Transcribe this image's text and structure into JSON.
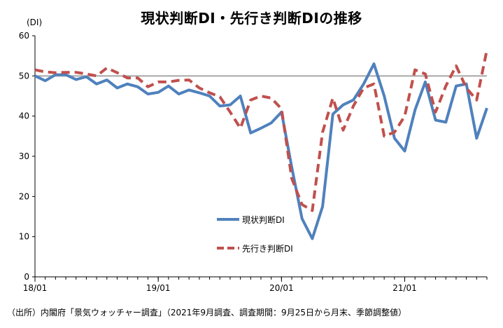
{
  "chart_data": {
    "type": "line",
    "title": "現状判断DI・先行き判断DIの推移",
    "ylabel": "(DI)",
    "xlabel": "",
    "ylim": [
      0,
      60
    ],
    "yticks": [
      0,
      10,
      20,
      30,
      40,
      50,
      60
    ],
    "x_start": "2018-01",
    "x_end": "2021-09",
    "x_tick_labels": [
      {
        "label": "18/01",
        "x": "2018-01"
      },
      {
        "label": "19/01",
        "x": "2019-01"
      },
      {
        "label": "20/01",
        "x": "2020-01"
      },
      {
        "label": "21/01",
        "x": "2021-01"
      }
    ],
    "reference_line": {
      "y": 50,
      "color": "#a6a6a6"
    },
    "grid": false,
    "legend_position": "center",
    "x": [
      "2018-01",
      "2018-02",
      "2018-03",
      "2018-04",
      "2018-05",
      "2018-06",
      "2018-07",
      "2018-08",
      "2018-09",
      "2018-10",
      "2018-11",
      "2018-12",
      "2019-01",
      "2019-02",
      "2019-03",
      "2019-04",
      "2019-05",
      "2019-06",
      "2019-07",
      "2019-08",
      "2019-09",
      "2019-10",
      "2019-11",
      "2019-12",
      "2020-01",
      "2020-02",
      "2020-03",
      "2020-04",
      "2020-05",
      "2020-06",
      "2020-07",
      "2020-08",
      "2020-09",
      "2020-10",
      "2020-11",
      "2020-12",
      "2021-01",
      "2021-02",
      "2021-03",
      "2021-04",
      "2021-05",
      "2021-06",
      "2021-07",
      "2021-08",
      "2021-09"
    ],
    "series": [
      {
        "name": "現状判断DI",
        "color": "#4f81bd",
        "dash": false,
        "values": [
          50.0,
          48.8,
          50.3,
          50.3,
          49.1,
          49.8,
          48.0,
          49.0,
          47.0,
          48.0,
          47.3,
          45.5,
          45.9,
          47.5,
          45.5,
          46.5,
          45.8,
          45.0,
          42.5,
          42.8,
          45.0,
          35.8,
          37.0,
          38.3,
          41.0,
          27.3,
          14.5,
          9.5,
          17.5,
          40.5,
          42.8,
          44.0,
          48.0,
          53.0,
          45.0,
          34.5,
          31.3,
          41.5,
          48.5,
          39.0,
          38.5,
          47.5,
          48.0,
          34.5,
          42.0
        ]
      },
      {
        "name": "先行き判断DI",
        "color": "#c0504d",
        "dash": true,
        "values": [
          51.5,
          51.0,
          50.8,
          50.9,
          50.9,
          50.5,
          50.0,
          52.0,
          50.8,
          49.5,
          49.5,
          47.3,
          48.5,
          48.5,
          48.9,
          49.0,
          47.0,
          45.8,
          44.8,
          41.0,
          37.0,
          44.0,
          45.0,
          44.5,
          41.8,
          24.5,
          18.0,
          16.5,
          36.0,
          44.5,
          36.5,
          42.5,
          47.0,
          48.0,
          35.0,
          36.0,
          40.0,
          51.5,
          50.5,
          41.0,
          47.5,
          52.5,
          47.0,
          44.0,
          56.5
        ]
      }
    ]
  },
  "source_note": "（出所）内閣府「景気ウォッチャー調査」（2021年9月調査、調査期間：9月25日から月末、季節調整値）"
}
